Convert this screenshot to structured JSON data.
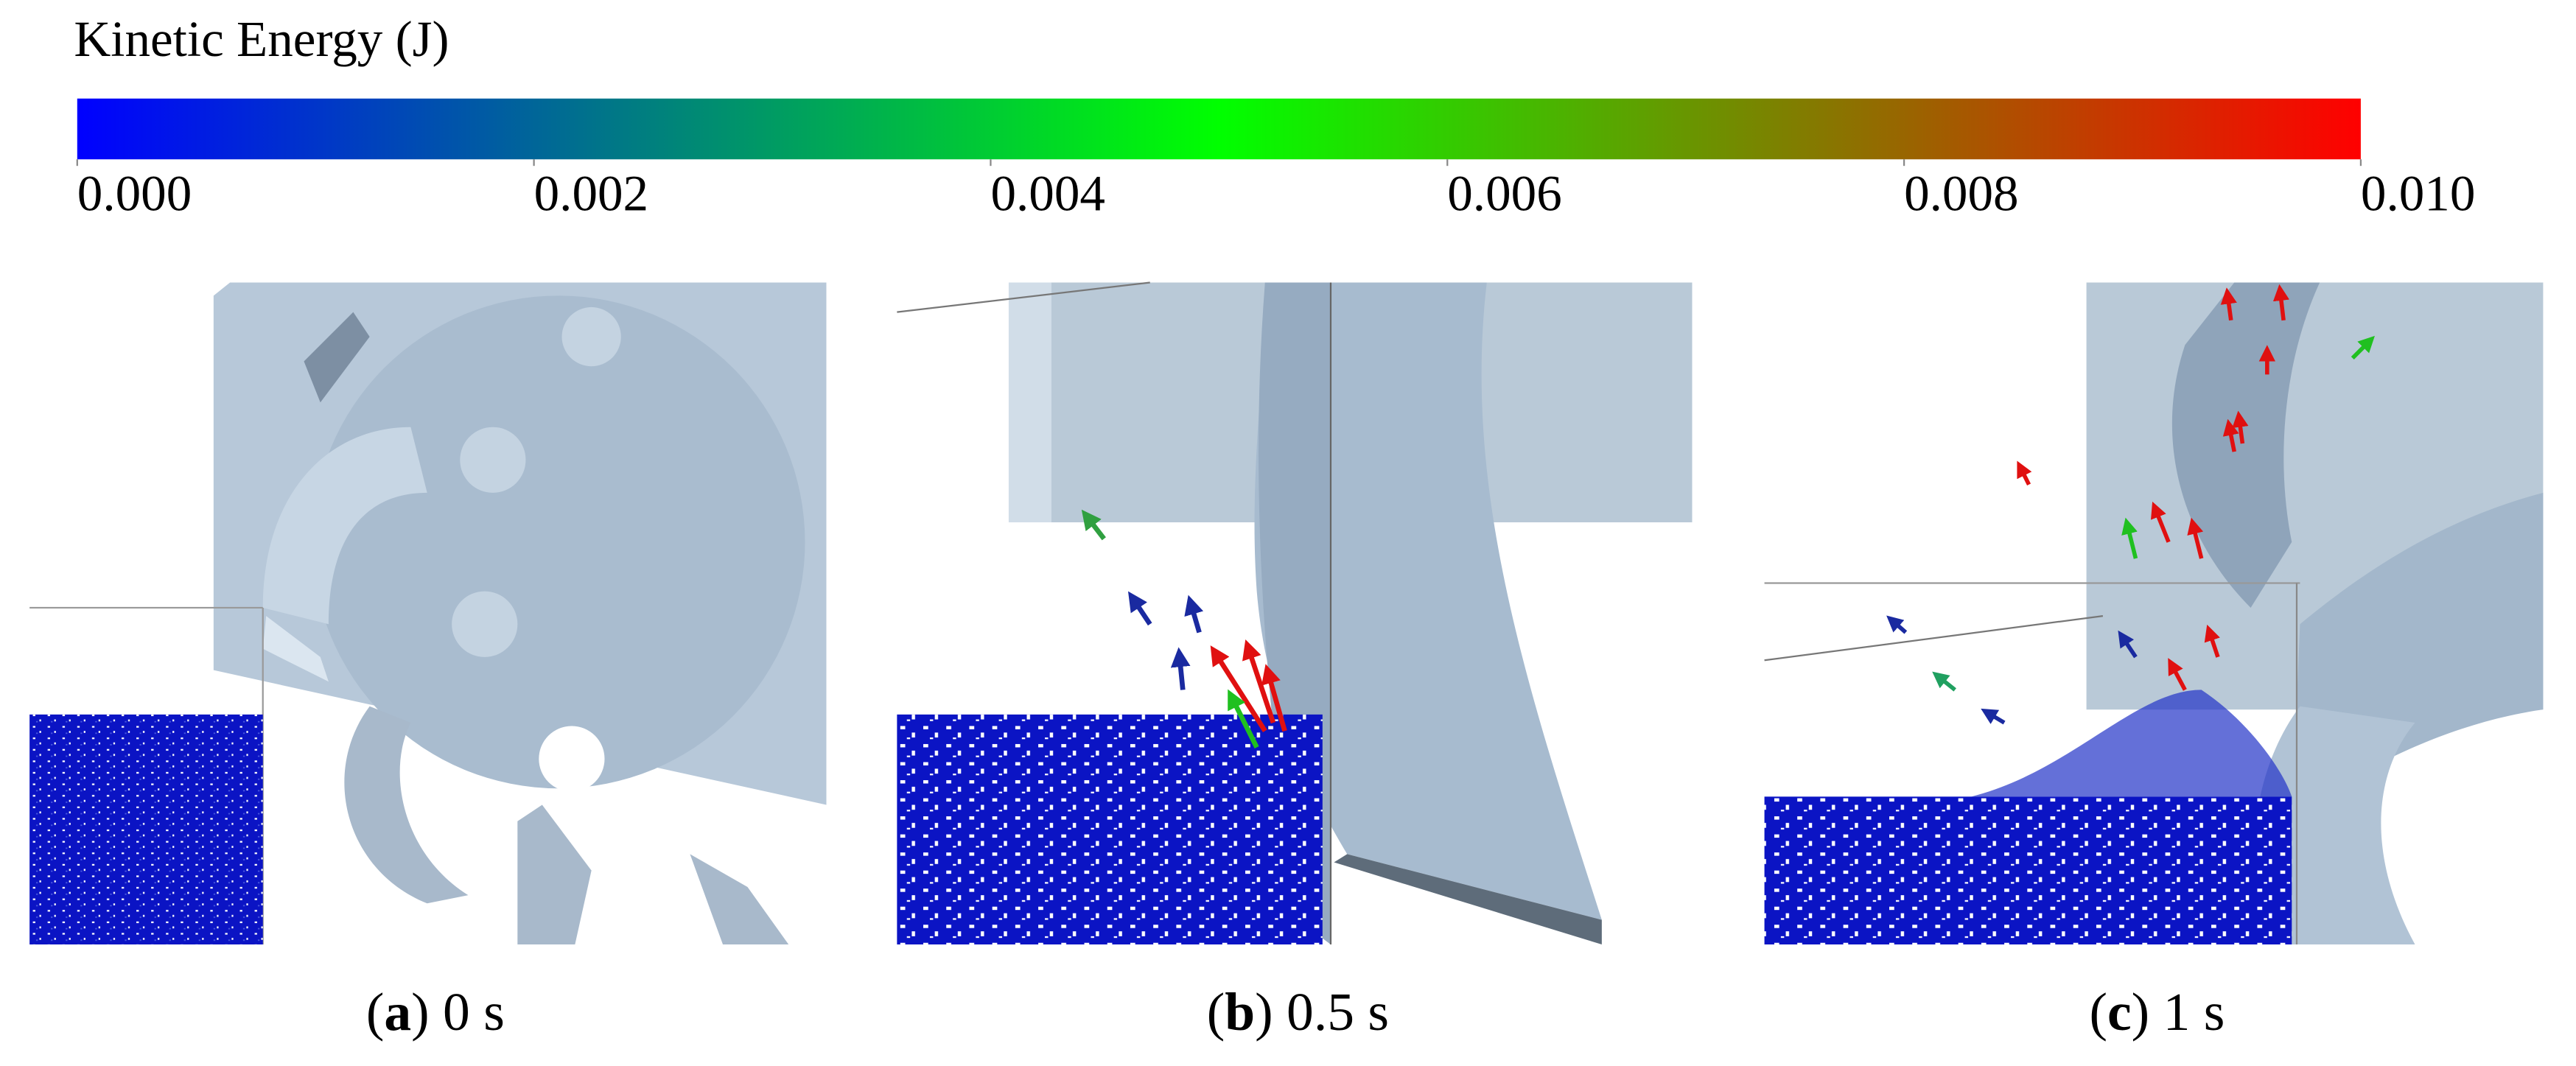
{
  "colorbar": {
    "title": "Kinetic Energy (J)",
    "lim": [
      0,
      0.01
    ],
    "colors": [
      "#0000ff",
      "#007f7f",
      "#00ff00",
      "#7f7f00",
      "#ff0000"
    ],
    "ticks": [
      {
        "value": 0,
        "label": "0.000"
      },
      {
        "value": 0.002,
        "label": "0.002"
      },
      {
        "value": 0.004,
        "label": "0.004"
      },
      {
        "value": 0.006,
        "label": "0.006"
      },
      {
        "value": 0.008,
        "label": "0.008"
      },
      {
        "value": 0.01,
        "label": "0.010"
      }
    ]
  },
  "panels": [
    {
      "caption": [
        "(",
        "a",
        ") 0 s"
      ]
    },
    {
      "caption": [
        "(",
        "b",
        ") 0.5 s"
      ]
    },
    {
      "caption": [
        "(",
        "c",
        ") 1 s"
      ]
    }
  ]
}
